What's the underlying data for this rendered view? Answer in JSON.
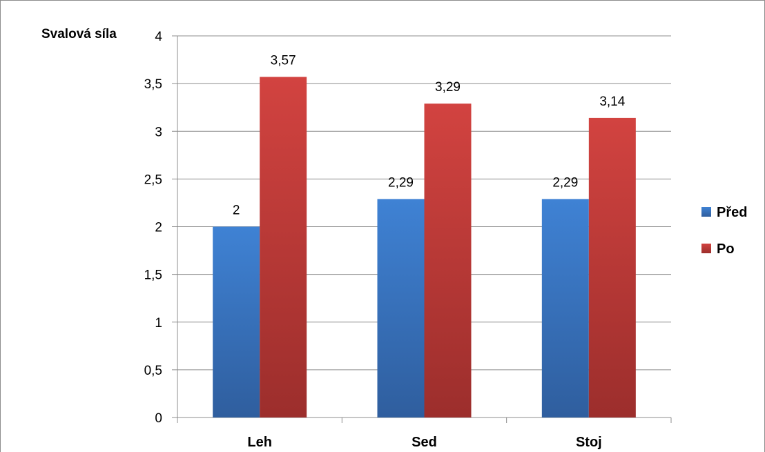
{
  "chart_data": {
    "type": "bar",
    "title": "",
    "ylabel": "Svalová síla",
    "xlabel": "",
    "categories": [
      "Leh",
      "Sed",
      "Stoj"
    ],
    "series": [
      {
        "name": "Před",
        "values": [
          2,
          2.29,
          2.29
        ],
        "data_labels": [
          "2",
          "2,29",
          "2,29"
        ],
        "color": "#3a7bc8"
      },
      {
        "name": "Po",
        "values": [
          3.57,
          3.29,
          3.14
        ],
        "data_labels": [
          "3,57",
          "3,29",
          "3,14"
        ],
        "color": "#c83b39"
      }
    ],
    "ylim": [
      0,
      4
    ],
    "yticks": [
      {
        "value": 0,
        "label": "0"
      },
      {
        "value": 0.5,
        "label": "0,5"
      },
      {
        "value": 1,
        "label": "1"
      },
      {
        "value": 1.5,
        "label": "1,5"
      },
      {
        "value": 2,
        "label": "2"
      },
      {
        "value": 2.5,
        "label": "2,5"
      },
      {
        "value": 3,
        "label": "3"
      },
      {
        "value": 3.5,
        "label": "3,5"
      },
      {
        "value": 4,
        "label": "4"
      }
    ],
    "grid": true,
    "legend_position": "right"
  }
}
